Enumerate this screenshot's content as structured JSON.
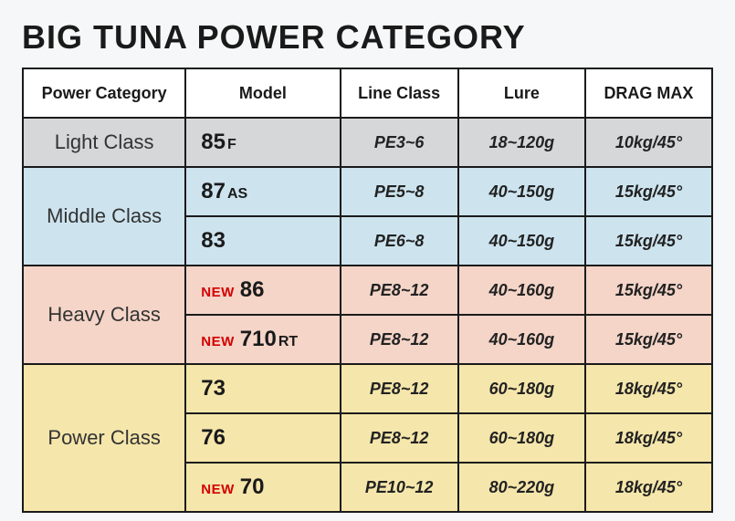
{
  "title": "BIG TUNA POWER CATEGORY",
  "columns": [
    "Power Category",
    "Model",
    "Line Class",
    "Lure",
    "DRAG MAX"
  ],
  "row_colors": {
    "light": "#d6d7d9",
    "middle": "#cde4ef",
    "heavy": "#f4d5c8",
    "power": "#f5e6ab"
  },
  "new_label": "NEW",
  "categories": [
    {
      "name": "Light Class",
      "color_key": "light",
      "rows": [
        {
          "model": "85",
          "suffix": "F",
          "is_new": false,
          "line": "PE3~6",
          "lure": "18~120g",
          "drag": "10kg/45°"
        }
      ]
    },
    {
      "name": "Middle Class",
      "color_key": "middle",
      "rows": [
        {
          "model": "87",
          "suffix": "AS",
          "is_new": false,
          "line": "PE5~8",
          "lure": "40~150g",
          "drag": "15kg/45°"
        },
        {
          "model": "83",
          "suffix": "",
          "is_new": false,
          "line": "PE6~8",
          "lure": "40~150g",
          "drag": "15kg/45°"
        }
      ]
    },
    {
      "name": "Heavy Class",
      "color_key": "heavy",
      "rows": [
        {
          "model": "86",
          "suffix": "",
          "is_new": true,
          "line": "PE8~12",
          "lure": "40~160g",
          "drag": "15kg/45°"
        },
        {
          "model": "710",
          "suffix": "RT",
          "is_new": true,
          "line": "PE8~12",
          "lure": "40~160g",
          "drag": "15kg/45°"
        }
      ]
    },
    {
      "name": "Power Class",
      "color_key": "power",
      "rows": [
        {
          "model": "73",
          "suffix": "",
          "is_new": false,
          "line": "PE8~12",
          "lure": "60~180g",
          "drag": "18kg/45°"
        },
        {
          "model": "76",
          "suffix": "",
          "is_new": false,
          "line": "PE8~12",
          "lure": "60~180g",
          "drag": "18kg/45°"
        },
        {
          "model": "70",
          "suffix": "",
          "is_new": true,
          "line": "PE10~12",
          "lure": "80~220g",
          "drag": "18kg/45°"
        }
      ]
    }
  ]
}
